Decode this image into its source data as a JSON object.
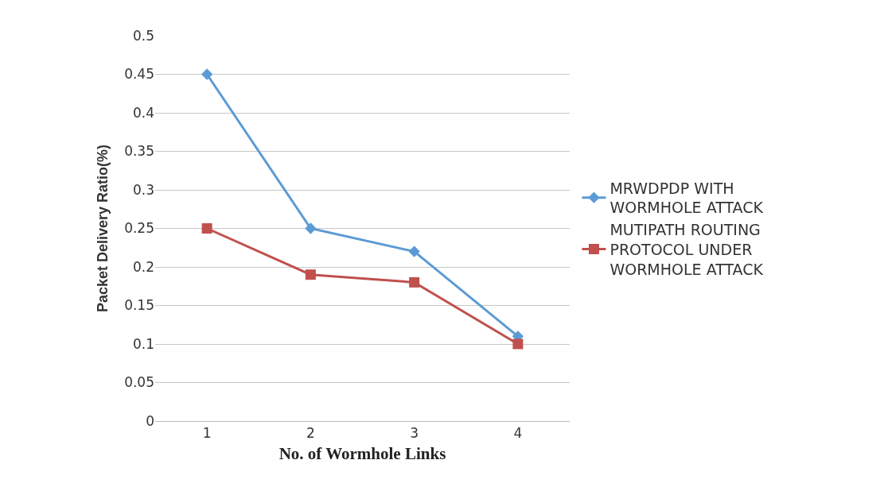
{
  "chart_data": {
    "type": "line",
    "xlabel": "No. of Wormhole Links",
    "ylabel": "Packet Delivery Ratio(%)",
    "categories": [
      "1",
      "2",
      "3",
      "4"
    ],
    "series": [
      {
        "name": "MRWDPDP WITH WORMHOLE ATTACK",
        "color": "#5b9bd5",
        "marker": "diamond",
        "values": [
          0.45,
          0.25,
          0.22,
          0.11
        ]
      },
      {
        "name": "MUTIPATH ROUTING PROTOCOL UNDER WORMHOLE ATTACK",
        "color": "#c0504d",
        "marker": "square",
        "values": [
          0.25,
          0.19,
          0.18,
          0.1
        ]
      }
    ],
    "ylim": [
      0,
      0.5
    ],
    "yticks": [
      0,
      0.05,
      0.1,
      0.15,
      0.2,
      0.25,
      0.3,
      0.35,
      0.4,
      0.45,
      0.5
    ],
    "grid": "y",
    "legend": "right"
  }
}
